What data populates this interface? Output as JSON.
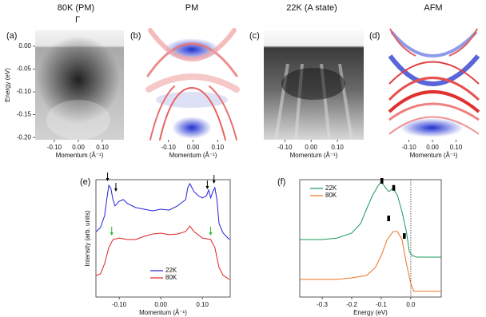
{
  "chart_data": [
    {
      "type": "image",
      "title": "80K (PM)",
      "annotation": "Γ",
      "panel_label": "(a)",
      "xlabel": "Momentum (Å⁻¹)",
      "ylabel": "Energy (eV)",
      "xlim": [
        -0.18,
        0.19
      ],
      "xticks": [
        {
          "value": -0.1,
          "label": "-0.10"
        },
        {
          "value": 0,
          "label": "0.00"
        },
        {
          "value": 0.1,
          "label": "0.10"
        }
      ],
      "ylim": [
        -0.205,
        0.035
      ],
      "yticks": [
        {
          "value": 0,
          "label": "0.00"
        },
        -0.05,
        {
          "value": -0.1,
          "label": "-0.10"
        },
        -0.15,
        {
          "value": -0.2,
          "label": "-0.20"
        }
      ]
    },
    {
      "type": "image",
      "title": "PM",
      "panel_label": "(b)",
      "xlabel": "Momentum (Å⁻¹)",
      "xlim": [
        -0.19,
        0.19
      ],
      "xticks": [
        {
          "value": -0.1,
          "label": "-0.10"
        },
        {
          "value": 0,
          "label": "0.00"
        },
        {
          "value": 0.1,
          "label": "0.10"
        }
      ]
    },
    {
      "type": "image",
      "title": "22K (A state)",
      "panel_label": "(c)",
      "xlabel": "Momentum (Å⁻¹)",
      "xlim": [
        -0.18,
        0.2
      ],
      "xticks": [
        {
          "value": -0.1,
          "label": "-0.10"
        },
        {
          "value": 0,
          "label": "0.00"
        },
        {
          "value": 0.1,
          "label": "0.10"
        }
      ]
    },
    {
      "type": "image",
      "title": "AFM",
      "panel_label": "(d)",
      "xlabel": "Momentum (Å⁻¹)",
      "xlim": [
        -0.19,
        0.2
      ],
      "xticks": [
        {
          "value": -0.1,
          "label": "-0.10"
        },
        {
          "value": 0,
          "label": "0.00"
        },
        {
          "value": 0.1,
          "label": "0.10"
        }
      ]
    },
    {
      "type": "line",
      "panel_label": "(e)",
      "xlabel": "Momentum (Å⁻¹)",
      "ylabel": "Intensity (arb. units)",
      "legend": "lower center",
      "xlim": [
        -0.156,
        0.167
      ],
      "xticks": [
        {
          "value": -0.1,
          "label": "-0.10"
        },
        {
          "value": 0,
          "label": "0.00"
        },
        {
          "value": 0.1,
          "label": "0.10"
        }
      ],
      "ylim": [
        0,
        10
      ],
      "series": [
        {
          "name": "22K",
          "color": "#2323d6",
          "x": [
            -0.155,
            -0.145,
            -0.135,
            -0.13,
            -0.125,
            -0.12,
            -0.115,
            -0.11,
            -0.1,
            -0.09,
            -0.08,
            -0.06,
            -0.04,
            -0.02,
            0,
            0.02,
            0.04,
            0.06,
            0.065,
            0.07,
            0.08,
            0.09,
            0.1,
            0.11,
            0.115,
            0.12,
            0.125,
            0.13,
            0.135,
            0.14,
            0.15,
            0.165
          ],
          "values": [
            5.58,
            5.92,
            6.94,
            8.3,
            9.52,
            9.25,
            8.3,
            7.76,
            8.16,
            8.3,
            7.96,
            7.62,
            7.48,
            7.35,
            7.48,
            7.41,
            7.76,
            8.3,
            9.32,
            9.66,
            8.98,
            8.64,
            8.44,
            8.64,
            9.12,
            8.44,
            8.98,
            9.32,
            8.3,
            6.26,
            5.44,
            4.9
          ]
        },
        {
          "name": "80K",
          "color": "#e02020",
          "x": [
            -0.155,
            -0.145,
            -0.135,
            -0.125,
            -0.115,
            -0.1,
            -0.08,
            -0.06,
            -0.04,
            -0.02,
            0,
            0.02,
            0.04,
            0.06,
            0.07,
            0.08,
            0.1,
            0.12,
            0.13,
            0.14,
            0.15,
            0.165
          ],
          "values": [
            1.84,
            1.97,
            2.86,
            4.22,
            4.9,
            5.03,
            4.9,
            4.9,
            5.17,
            5.37,
            5.44,
            5.31,
            5.37,
            5.58,
            6.05,
            5.58,
            5.03,
            4.9,
            4.22,
            2.52,
            1.84,
            1.5
          ]
        }
      ],
      "arrows": [
        {
          "x": -0.128,
          "y": 9.86,
          "color": "#000000"
        },
        {
          "x": -0.108,
          "y": 8.98,
          "color": "#000000"
        },
        {
          "x": 0.112,
          "y": 9.18,
          "color": "#000000"
        },
        {
          "x": 0.128,
          "y": 9.66,
          "color": "#000000"
        },
        {
          "x": -0.118,
          "y": 5.24,
          "color": "#22bb22"
        },
        {
          "x": 0.12,
          "y": 5.24,
          "color": "#22bb22"
        }
      ]
    },
    {
      "type": "line",
      "panel_label": "(f)",
      "xlabel": "Energy (eV)",
      "legend": "upper left",
      "xlim": [
        -0.376,
        0.103
      ],
      "xticks": [
        -0.3,
        -0.2,
        -0.1,
        {
          "value": 0,
          "label": "0.0"
        }
      ],
      "ylim": [
        0,
        10
      ],
      "vline": 0,
      "series": [
        {
          "name": "22K",
          "color": "#1a9a5a",
          "x": [
            -0.376,
            -0.3,
            -0.25,
            -0.2,
            -0.17,
            -0.15,
            -0.13,
            -0.11,
            -0.1,
            -0.09,
            -0.075,
            -0.06,
            -0.045,
            -0.03,
            -0.015,
            -0.005,
            0.005,
            0.02,
            0.103
          ],
          "values": [
            4.9,
            4.9,
            5.03,
            5.44,
            6.26,
            7.48,
            8.64,
            9.52,
            9.8,
            9.46,
            8.98,
            9.25,
            8.64,
            7.28,
            5.58,
            3.88,
            3.54,
            3.4,
            3.4
          ]
        },
        {
          "name": "80K",
          "color": "#f07020",
          "x": [
            -0.376,
            -0.25,
            -0.2,
            -0.15,
            -0.12,
            -0.1,
            -0.08,
            -0.06,
            -0.045,
            -0.03,
            -0.015,
            0,
            0.01,
            0.103
          ],
          "values": [
            1.5,
            1.5,
            1.63,
            1.84,
            2.52,
            3.54,
            4.9,
            5.58,
            5.58,
            4.9,
            2.86,
            1.16,
            0.48,
            0.48
          ]
        }
      ],
      "markers": [
        {
          "x": -0.098,
          "y": 9.9
        },
        {
          "x": -0.058,
          "y": 9.3
        },
        {
          "x": -0.075,
          "y": 6.7
        },
        {
          "x": -0.022,
          "y": 5.2
        }
      ]
    }
  ]
}
